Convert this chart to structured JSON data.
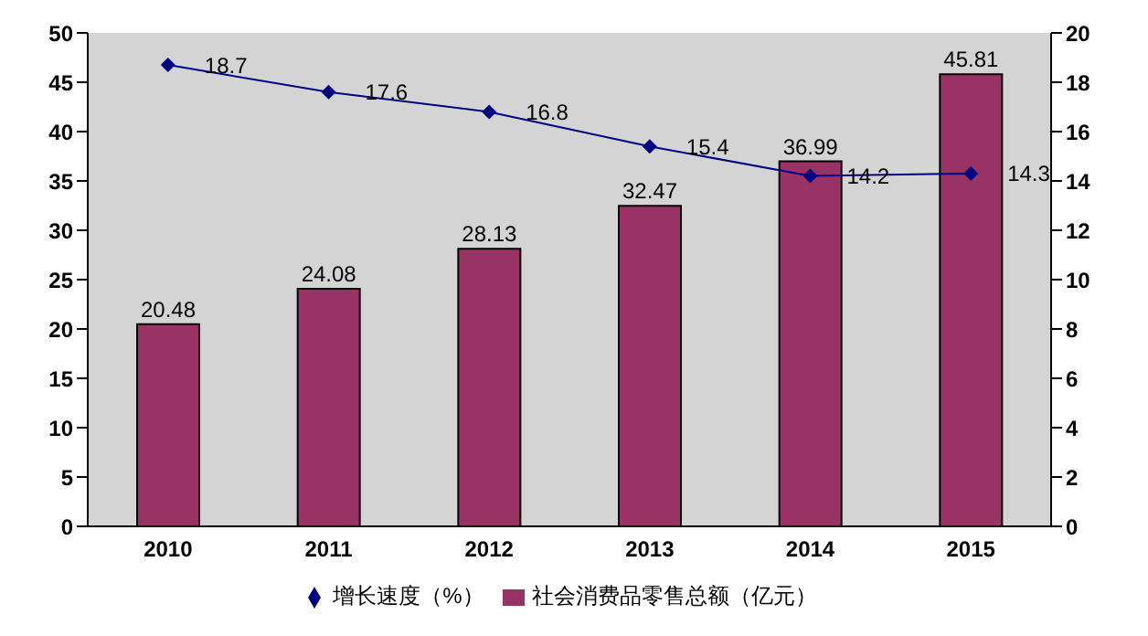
{
  "chart_data": {
    "type": "bar",
    "categories": [
      "2010",
      "2011",
      "2012",
      "2013",
      "2014",
      "2015"
    ],
    "series": [
      {
        "name": "社会消费品零售总额（亿元）",
        "color": "#993366",
        "values": [
          20.48,
          24.08,
          28.13,
          32.47,
          36.99,
          45.81
        ]
      },
      {
        "name": "增长速度（%）",
        "type": "line",
        "axis": "y2",
        "color": "#000080",
        "marker": "diamond",
        "values": [
          18.7,
          17.6,
          16.8,
          15.4,
          14.2,
          14.3
        ]
      }
    ],
    "ylim": [
      0,
      50
    ],
    "yticks": [
      0,
      5,
      10,
      15,
      20,
      25,
      30,
      35,
      40,
      45,
      50
    ],
    "y2lim": [
      0,
      20
    ],
    "y2ticks": [
      0,
      2,
      4,
      6,
      8,
      10,
      12,
      14,
      16,
      18,
      20
    ],
    "data_labels": true,
    "legend": "bottom"
  }
}
